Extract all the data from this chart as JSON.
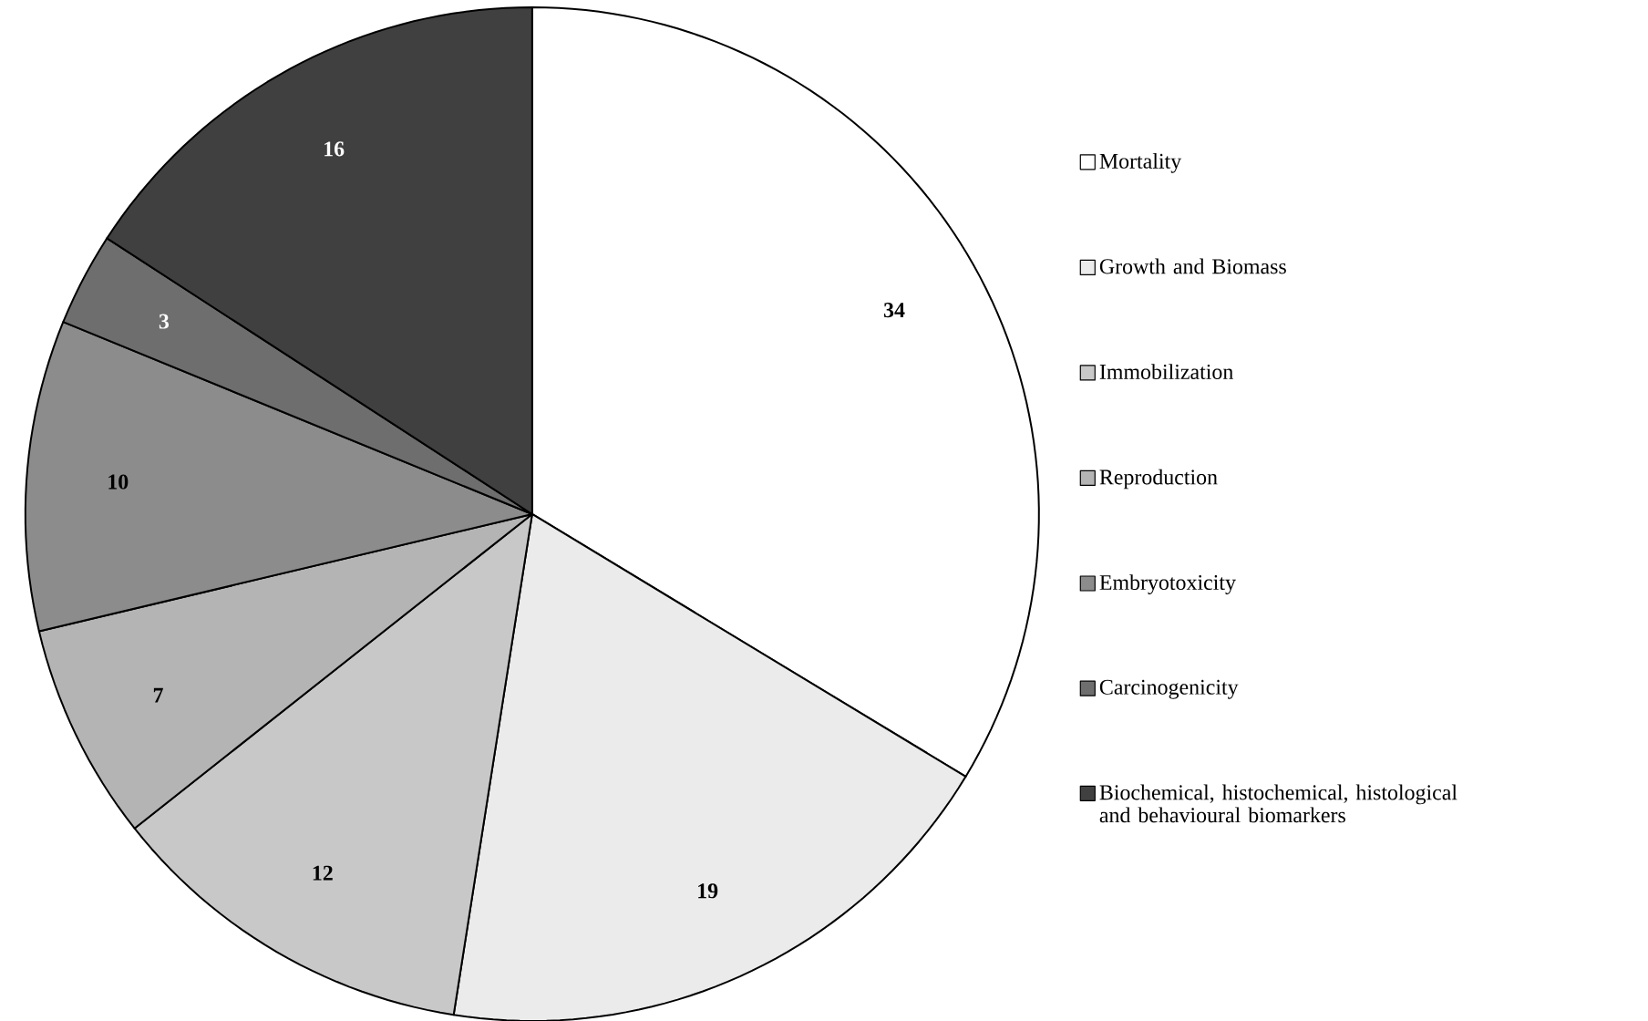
{
  "chart_data": {
    "type": "pie",
    "categories": [
      "Mortality",
      "Growth and Biomass",
      "Immobilization",
      "Reproduction",
      "Embryotoxicity",
      "Carcinogenicity",
      "Biochemical, histochemical, histological and behavioural biomarkers"
    ],
    "values": [
      34,
      19,
      12,
      7,
      10,
      3,
      16
    ],
    "colors": [
      "#ffffff",
      "#ebebeb",
      "#c8c8c8",
      "#b4b4b4",
      "#8c8c8c",
      "#6e6e6e",
      "#404040"
    ],
    "data_labels": true,
    "legend": "right"
  }
}
